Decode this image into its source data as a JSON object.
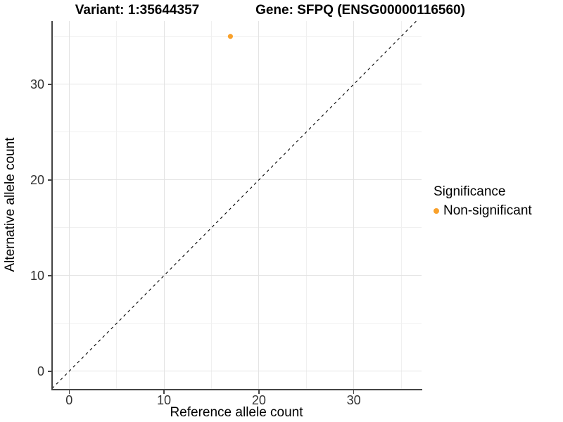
{
  "titles": {
    "left": "Variant: 1:35644357",
    "right": "Gene: SFPQ (ENSG00000116560)"
  },
  "chart_data": {
    "type": "scatter",
    "title": "Variant: 1:35644357   Gene: SFPQ (ENSG00000116560)",
    "xlabel": "Reference allele count",
    "ylabel": "Alternative allele count",
    "xlim": [
      -1.8,
      37.15
    ],
    "ylim": [
      -1.85,
      36.6
    ],
    "xticks": [
      0,
      10,
      20,
      30
    ],
    "yticks": [
      0,
      10,
      20,
      30
    ],
    "xminor": [
      5,
      15,
      25,
      35
    ],
    "yminor": [
      5,
      15,
      25,
      35
    ],
    "grid": true,
    "series": [
      {
        "name": "Non-significant",
        "color": "#F9A12B",
        "points": [
          {
            "x": 17,
            "y": 35
          }
        ]
      }
    ],
    "refline": {
      "type": "identity y=x",
      "style": "dashed",
      "color": "#000000"
    },
    "legend": {
      "title": "Significance",
      "position": "right",
      "items": [
        {
          "label": "Non-significant",
          "color": "#F9A12B"
        }
      ]
    },
    "colors": {
      "background": "#FFFFFF",
      "axis": "#444444",
      "tick_label": "#333333",
      "grid_major": "#E3E3E3",
      "grid_minor": "#F0F0F0"
    }
  }
}
